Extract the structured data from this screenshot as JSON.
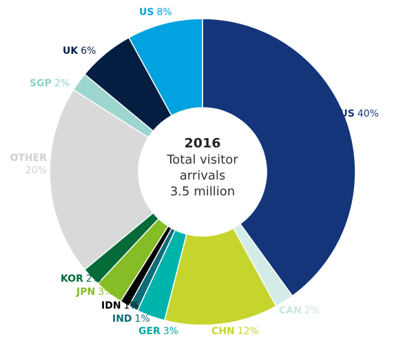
{
  "chart_data": {
    "type": "donut",
    "categories": [
      "AUS",
      "CAN",
      "CHN",
      "GER",
      "IND",
      "IDN",
      "JPN",
      "KOR",
      "OTHER",
      "SGP",
      "UK",
      "US"
    ],
    "values": [
      40,
      2,
      12,
      3,
      1,
      1,
      3,
      2,
      20,
      2,
      6,
      8
    ],
    "value_labels": [
      "40%",
      "2%",
      "12%",
      "3%",
      "1%",
      "1%",
      "3%",
      "2%",
      "20%",
      "2%",
      "6%",
      "8%"
    ],
    "colors": [
      "#14357a",
      "#d3ece7",
      "#c6d52e",
      "#00b3aa",
      "#0e6b78",
      "#000000",
      "#86bc25",
      "#046a38",
      "#d9d9d9",
      "#9dd5cf",
      "#041e42",
      "#00a3e0"
    ],
    "center": {
      "title": "2016",
      "lines": [
        "Total visitor",
        "arrivals",
        "3.5 million"
      ]
    }
  }
}
